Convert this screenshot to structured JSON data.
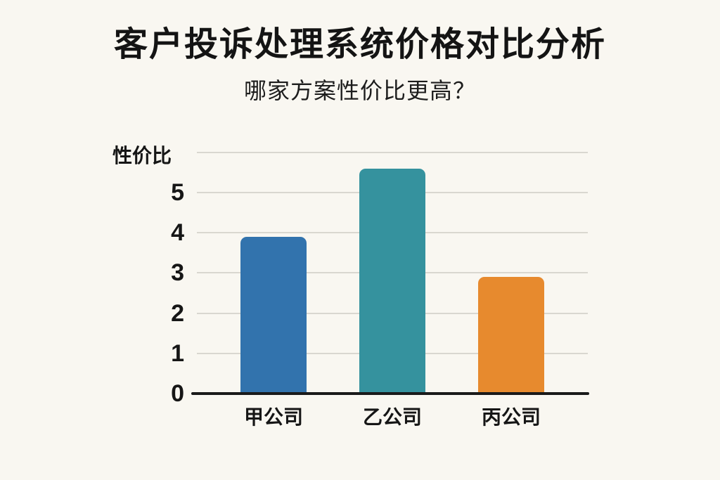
{
  "header": {
    "title": "客户投诉处理系统价格对比分析",
    "subtitle": "哪家方案性价比更高？"
  },
  "chart_data": {
    "type": "bar",
    "title": "客户投诉处理系统价格对比分析",
    "subtitle": "哪家方案性价比更高？",
    "categories": [
      "甲公司",
      "乙公司",
      "丙公司"
    ],
    "values": [
      3.9,
      5.6,
      2.9
    ],
    "bar_colors": [
      "#3273ad",
      "#35929e",
      "#e78a2e"
    ],
    "xlabel": "",
    "ylabel": "性价比",
    "yticks": [
      0,
      1,
      2,
      3,
      4,
      5
    ],
    "ylim": [
      0,
      6
    ],
    "grid": "on",
    "legend": "none",
    "background_color": "#f9f7f1",
    "gridline_color": "#d9d7d0",
    "axis_color": "#1a1a1a"
  }
}
